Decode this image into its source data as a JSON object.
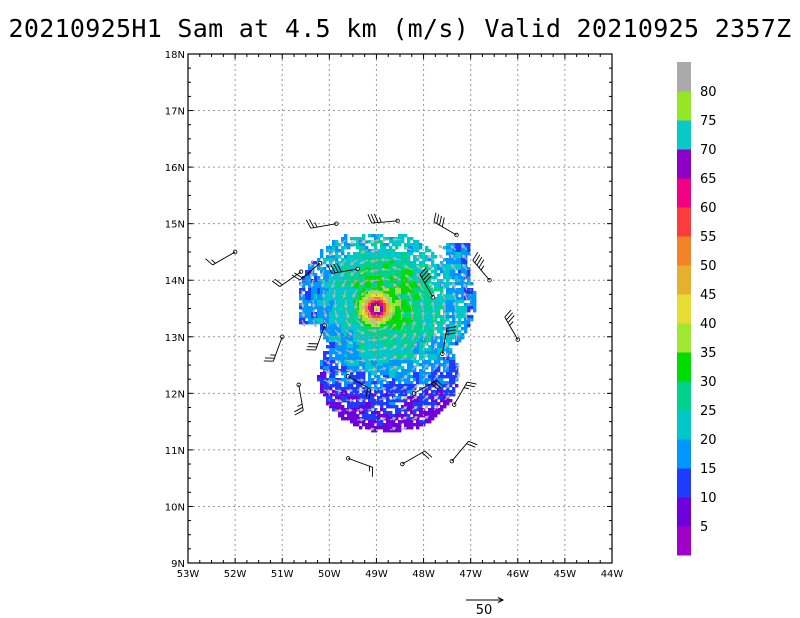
{
  "chart_data": {
    "type": "heatmap",
    "title": "20210925H1 Sam at 4.5 km (m/s) Valid 20210925  2357Z",
    "x_ticks": [
      {
        "lon": -53,
        "label": "53W"
      },
      {
        "lon": -52,
        "label": "52W"
      },
      {
        "lon": -51,
        "label": "51W"
      },
      {
        "lon": -50,
        "label": "50W"
      },
      {
        "lon": -49,
        "label": "49W"
      },
      {
        "lon": -48,
        "label": "48W"
      },
      {
        "lon": -47,
        "label": "47W"
      },
      {
        "lon": -46,
        "label": "46W"
      },
      {
        "lon": -45,
        "label": "45W"
      },
      {
        "lon": -44,
        "label": "44W"
      }
    ],
    "y_ticks": [
      {
        "lat": 9,
        "label": "9N"
      },
      {
        "lat": 10,
        "label": "10N"
      },
      {
        "lat": 11,
        "label": "11N"
      },
      {
        "lat": 12,
        "label": "12N"
      },
      {
        "lat": 13,
        "label": "13N"
      },
      {
        "lat": 14,
        "label": "14N"
      },
      {
        "lat": 15,
        "label": "15N"
      },
      {
        "lat": 16,
        "label": "16N"
      },
      {
        "lat": 17,
        "label": "17N"
      },
      {
        "lat": 18,
        "label": "18N"
      }
    ],
    "xlim": [
      -53,
      -44
    ],
    "ylim": [
      9,
      18
    ],
    "grid": true,
    "storm_center": {
      "lon": -49.0,
      "lat": 13.5
    },
    "colorbar": {
      "levels": [
        0,
        5,
        10,
        15,
        20,
        25,
        30,
        35,
        40,
        45,
        50,
        55,
        60,
        65,
        70,
        75,
        80
      ],
      "labels": [
        "5",
        "10",
        "15",
        "20",
        "25",
        "30",
        "35",
        "40",
        "45",
        "50",
        "55",
        "60",
        "65",
        "70",
        "75",
        "80"
      ],
      "colors": [
        "#a000c8",
        "#6e00dc",
        "#1e3cff",
        "#0096ff",
        "#00c8c8",
        "#00d28c",
        "#00dc00",
        "#a0e632",
        "#e6dc32",
        "#e6af2d",
        "#f08228",
        "#fa3c3c",
        "#f00082",
        "#8c00c8",
        "#0ac8c8",
        "#96e628",
        "#aaaaaa"
      ]
    },
    "reference_vector": {
      "label": "50",
      "speed": 50
    },
    "vector_color": "#b4b4b4",
    "barb_color": "#000000",
    "barbs": [
      {
        "lon": -52.0,
        "lat": 14.5,
        "dir": 240,
        "spd": 15
      },
      {
        "lon": -50.6,
        "lat": 14.15,
        "dir": 235,
        "spd": 20
      },
      {
        "lon": -50.2,
        "lat": 14.3,
        "dir": 230,
        "spd": 20
      },
      {
        "lon": -49.85,
        "lat": 15.0,
        "dir": 260,
        "spd": 25
      },
      {
        "lon": -48.55,
        "lat": 15.05,
        "dir": 265,
        "spd": 35
      },
      {
        "lon": -47.3,
        "lat": 14.8,
        "dir": 300,
        "spd": 40
      },
      {
        "lon": -46.6,
        "lat": 14.0,
        "dir": 320,
        "spd": 45
      },
      {
        "lon": -46.0,
        "lat": 12.95,
        "dir": 330,
        "spd": 35
      },
      {
        "lon": -47.35,
        "lat": 11.8,
        "dir": 30,
        "spd": 25
      },
      {
        "lon": -47.4,
        "lat": 10.8,
        "dir": 40,
        "spd": 20
      },
      {
        "lon": -48.45,
        "lat": 10.75,
        "dir": 60,
        "spd": 20
      },
      {
        "lon": -49.6,
        "lat": 10.85,
        "dir": 110,
        "spd": 15
      },
      {
        "lon": -50.65,
        "lat": 12.15,
        "dir": 170,
        "spd": 25
      },
      {
        "lon": -51.0,
        "lat": 13.0,
        "dir": 200,
        "spd": 25
      },
      {
        "lon": -49.6,
        "lat": 12.3,
        "dir": 120,
        "spd": 20
      },
      {
        "lon": -48.2,
        "lat": 12.0,
        "dir": 60,
        "spd": 30
      },
      {
        "lon": -47.8,
        "lat": 13.7,
        "dir": 330,
        "spd": 40
      },
      {
        "lon": -49.4,
        "lat": 14.2,
        "dir": 260,
        "spd": 40
      },
      {
        "lon": -50.1,
        "lat": 13.2,
        "dir": 200,
        "spd": 30
      },
      {
        "lon": -47.6,
        "lat": 12.7,
        "dir": 10,
        "spd": 30
      }
    ]
  }
}
